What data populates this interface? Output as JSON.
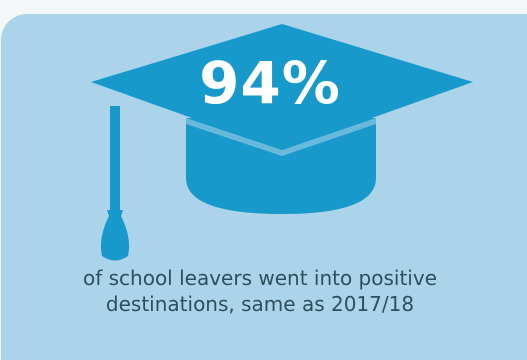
{
  "infographic": {
    "stat_value": "94%",
    "caption": "of school leavers went into positive destinations, same as 2017/18",
    "icon": "graduation-cap-icon",
    "colors": {
      "page_background": "#f3f7f8",
      "panel_background": "#abd3ea",
      "icon_fill": "#1799cb",
      "stat_text": "#ffffff",
      "caption_text": "#2f4f5d"
    }
  }
}
